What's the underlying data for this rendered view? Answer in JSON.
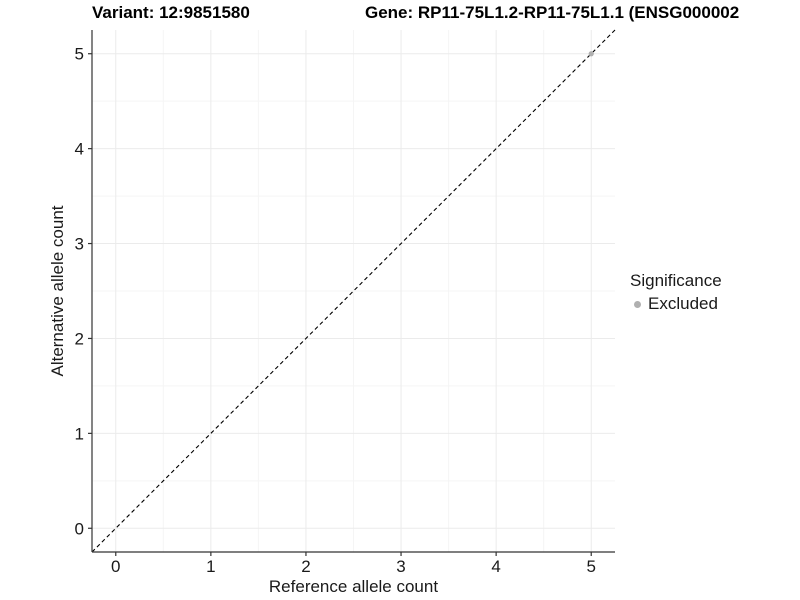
{
  "chart_data": {
    "type": "scatter",
    "title_left": "Variant: 12:9851580",
    "title_right": "Gene: RP11-75L1.2-RP11-75L1.1 (ENSG000002",
    "xlabel": "Reference allele count",
    "ylabel": "Alternative allele count",
    "xlim": [
      -0.25,
      5.25
    ],
    "ylim": [
      -0.25,
      5.25
    ],
    "x_ticks": [
      0,
      1,
      2,
      3,
      4,
      5
    ],
    "y_ticks": [
      0,
      1,
      2,
      3,
      4,
      5
    ],
    "minor_grid_step": 0.5,
    "grid": true,
    "identity_line": {
      "type": "dashed",
      "color": "#000000",
      "from": -0.25,
      "to": 5.25
    },
    "series": [
      {
        "name": "Excluded",
        "color": "#b0b0b0",
        "points": [
          {
            "x": 5,
            "y": 5
          }
        ]
      }
    ],
    "legend": {
      "title": "Significance",
      "position": "right",
      "entries": [
        {
          "label": "Excluded",
          "color": "#b0b0b0"
        }
      ]
    },
    "colors": {
      "grid_major": "#ebebeb",
      "grid_minor": "#f5f5f5",
      "axis_line": "#333333",
      "tick_mark": "#333333",
      "tick_label": "#1a1a1a"
    }
  }
}
